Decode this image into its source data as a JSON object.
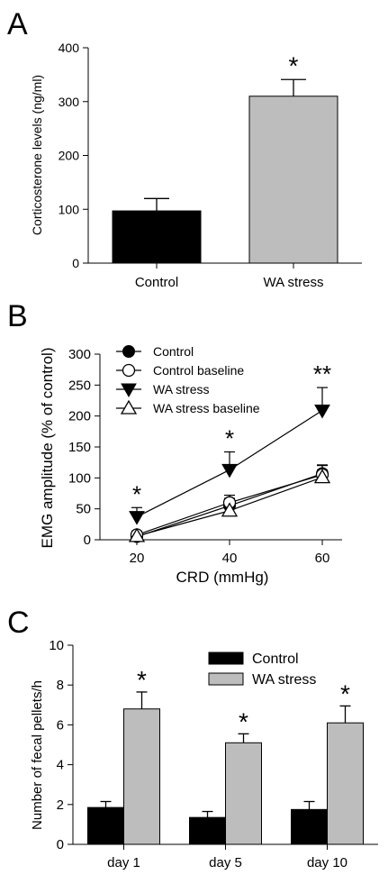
{
  "chart_data": [
    {
      "panel_label": "A",
      "type": "bar",
      "categories": [
        "Control",
        "WA stress"
      ],
      "values": [
        97,
        310
      ],
      "errors": [
        23,
        31
      ],
      "bar_colors": [
        "#000000",
        "#bdbdbd"
      ],
      "significance": [
        "",
        "*"
      ],
      "ylabel": "Corticosterone levels (ng/ml)",
      "xlabel": "",
      "ylim": [
        0,
        400
      ],
      "yticks": [
        "0",
        "100",
        "200",
        "300",
        "400"
      ],
      "grid": false
    },
    {
      "panel_label": "B",
      "type": "line",
      "x": [
        20,
        40,
        60
      ],
      "xticks": [
        "20",
        "40",
        "60"
      ],
      "xlabel": "CRD (mmHg)",
      "ylabel": "EMG amplitude (% of control)",
      "ylim": [
        0,
        300
      ],
      "yticks": [
        "0",
        "50",
        "100",
        "150",
        "200",
        "250",
        "300"
      ],
      "legend_position": "top-left",
      "grid": false,
      "series": [
        {
          "name": "Control",
          "marker": "circle-filled",
          "values": [
            5,
            55,
            107
          ],
          "errors": [
            5,
            12,
            14
          ]
        },
        {
          "name": "Control baseline",
          "marker": "circle-open",
          "values": [
            8,
            60,
            105
          ],
          "errors": [
            6,
            12,
            15
          ]
        },
        {
          "name": "WA stress",
          "marker": "triangle-down-filled",
          "values": [
            37,
            113,
            209
          ],
          "errors": [
            15,
            29,
            37
          ]
        },
        {
          "name": "WA stress baseline",
          "marker": "triangle-up-open",
          "values": [
            6,
            47,
            101
          ],
          "errors": [
            5,
            13,
            12
          ]
        }
      ],
      "significance": [
        "*",
        "*",
        "**"
      ]
    },
    {
      "panel_label": "C",
      "type": "bar",
      "categories": [
        "day 1",
        "day 5",
        "day 10"
      ],
      "xlabel": "",
      "ylabel": "Number of fecal pellets/h",
      "ylim": [
        0,
        10
      ],
      "yticks": [
        "0",
        "2",
        "4",
        "6",
        "8",
        "10"
      ],
      "legend_position": "top-right",
      "grid": false,
      "series": [
        {
          "name": "Control",
          "color": "#000000",
          "values": [
            1.85,
            1.35,
            1.75
          ],
          "errors": [
            0.3,
            0.3,
            0.4
          ]
        },
        {
          "name": "WA stress",
          "color": "#bdbdbd",
          "values": [
            6.8,
            5.1,
            6.1
          ],
          "errors": [
            0.85,
            0.45,
            0.85
          ]
        }
      ],
      "significance": [
        "*",
        "*",
        "*"
      ]
    }
  ]
}
